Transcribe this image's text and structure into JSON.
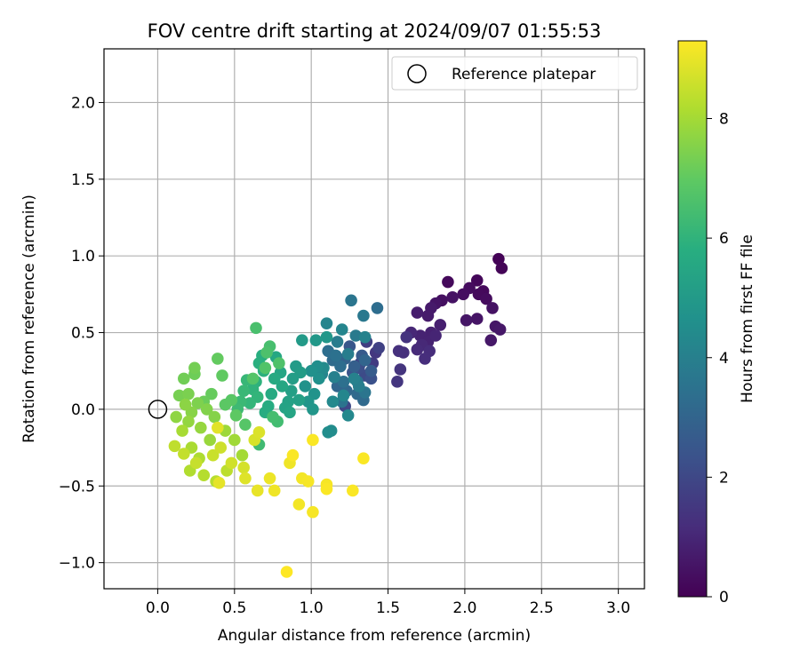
{
  "chart_data": {
    "type": "scatter",
    "title": "FOV centre drift starting at 2024/09/07 01:55:53",
    "xlabel": "Angular distance from reference (arcmin)",
    "ylabel": "Rotation from reference (arcmin)",
    "xlim": [
      -0.35,
      3.17
    ],
    "ylim": [
      -1.17,
      2.35
    ],
    "xticks": [
      0.0,
      0.5,
      1.0,
      1.5,
      2.0,
      2.5,
      3.0
    ],
    "xtick_labels": [
      "0.0",
      "0.5",
      "1.0",
      "1.5",
      "2.0",
      "2.5",
      "3.0"
    ],
    "yticks": [
      -1.0,
      -0.5,
      0.0,
      0.5,
      1.0,
      1.5,
      2.0
    ],
    "ytick_labels": [
      "−1.0",
      "−0.5",
      "0.0",
      "0.5",
      "1.0",
      "1.5",
      "2.0"
    ],
    "grid": true,
    "colormap": "viridis",
    "colorbar": {
      "label": "Hours from first FF file",
      "range": [
        0,
        9.3
      ],
      "ticks": [
        0,
        2,
        4,
        6,
        8
      ],
      "tick_labels": [
        "0",
        "2",
        "4",
        "6",
        "8"
      ]
    },
    "legend": {
      "placement": "top-right",
      "entries": [
        {
          "label": "Reference platepar",
          "marker": "open-circle"
        }
      ]
    },
    "reference_point": {
      "x": 0.0,
      "y": 0.0
    },
    "points": [
      {
        "x": 2.22,
        "y": 0.98,
        "h": 0.05
      },
      {
        "x": 2.24,
        "y": 0.92,
        "h": 0.1
      },
      {
        "x": 2.08,
        "y": 0.84,
        "h": 0.15
      },
      {
        "x": 1.89,
        "y": 0.83,
        "h": 0.2
      },
      {
        "x": 2.12,
        "y": 0.77,
        "h": 0.2
      },
      {
        "x": 2.09,
        "y": 0.75,
        "h": 0.25
      },
      {
        "x": 2.03,
        "y": 0.79,
        "h": 0.3
      },
      {
        "x": 2.14,
        "y": 0.72,
        "h": 0.3
      },
      {
        "x": 1.99,
        "y": 0.75,
        "h": 0.35
      },
      {
        "x": 1.85,
        "y": 0.71,
        "h": 0.4
      },
      {
        "x": 1.92,
        "y": 0.73,
        "h": 0.45
      },
      {
        "x": 2.18,
        "y": 0.66,
        "h": 0.45
      },
      {
        "x": 1.81,
        "y": 0.69,
        "h": 0.5
      },
      {
        "x": 2.08,
        "y": 0.59,
        "h": 0.5
      },
      {
        "x": 2.01,
        "y": 0.58,
        "h": 0.55
      },
      {
        "x": 2.2,
        "y": 0.54,
        "h": 0.55
      },
      {
        "x": 2.23,
        "y": 0.52,
        "h": 0.6
      },
      {
        "x": 2.17,
        "y": 0.45,
        "h": 0.6
      },
      {
        "x": 1.78,
        "y": 0.66,
        "h": 0.65
      },
      {
        "x": 1.76,
        "y": 0.61,
        "h": 0.7
      },
      {
        "x": 1.69,
        "y": 0.63,
        "h": 0.75
      },
      {
        "x": 1.84,
        "y": 0.55,
        "h": 0.8
      },
      {
        "x": 1.78,
        "y": 0.5,
        "h": 0.85
      },
      {
        "x": 1.71,
        "y": 0.48,
        "h": 0.9
      },
      {
        "x": 1.76,
        "y": 0.44,
        "h": 0.9
      },
      {
        "x": 1.81,
        "y": 0.48,
        "h": 0.95
      },
      {
        "x": 1.65,
        "y": 0.5,
        "h": 1.0
      },
      {
        "x": 1.72,
        "y": 0.42,
        "h": 1.05
      },
      {
        "x": 1.69,
        "y": 0.39,
        "h": 1.1
      },
      {
        "x": 1.77,
        "y": 0.38,
        "h": 1.15
      },
      {
        "x": 1.74,
        "y": 0.33,
        "h": 1.2
      },
      {
        "x": 1.6,
        "y": 0.37,
        "h": 1.25
      },
      {
        "x": 1.57,
        "y": 0.38,
        "h": 1.3
      },
      {
        "x": 1.62,
        "y": 0.47,
        "h": 1.35
      },
      {
        "x": 1.58,
        "y": 0.26,
        "h": 1.4
      },
      {
        "x": 1.56,
        "y": 0.18,
        "h": 1.45
      },
      {
        "x": 1.42,
        "y": 0.37,
        "h": 1.5
      },
      {
        "x": 1.4,
        "y": 0.3,
        "h": 1.6
      },
      {
        "x": 1.36,
        "y": 0.44,
        "h": 1.7
      },
      {
        "x": 1.44,
        "y": 0.4,
        "h": 1.8
      },
      {
        "x": 1.32,
        "y": 0.3,
        "h": 1.9
      },
      {
        "x": 1.22,
        "y": 0.02,
        "h": 2.0
      },
      {
        "x": 1.35,
        "y": 0.22,
        "h": 2.1
      },
      {
        "x": 1.31,
        "y": 0.27,
        "h": 2.2
      },
      {
        "x": 1.39,
        "y": 0.2,
        "h": 2.3
      },
      {
        "x": 1.27,
        "y": 0.24,
        "h": 2.4
      },
      {
        "x": 1.25,
        "y": 0.41,
        "h": 2.5
      },
      {
        "x": 1.33,
        "y": 0.35,
        "h": 2.6
      },
      {
        "x": 1.39,
        "y": 0.25,
        "h": 2.7
      },
      {
        "x": 1.28,
        "y": 0.28,
        "h": 2.8
      },
      {
        "x": 1.22,
        "y": 0.33,
        "h": 2.9
      },
      {
        "x": 1.35,
        "y": 0.32,
        "h": 3.0
      },
      {
        "x": 1.17,
        "y": 0.15,
        "h": 3.05
      },
      {
        "x": 1.23,
        "y": 0.12,
        "h": 3.1
      },
      {
        "x": 1.3,
        "y": 0.1,
        "h": 3.15
      },
      {
        "x": 1.34,
        "y": 0.06,
        "h": 3.2
      },
      {
        "x": 1.14,
        "y": 0.32,
        "h": 3.25
      },
      {
        "x": 1.19,
        "y": 0.28,
        "h": 3.3
      },
      {
        "x": 1.43,
        "y": 0.66,
        "h": 3.3
      },
      {
        "x": 1.11,
        "y": 0.38,
        "h": 3.35
      },
      {
        "x": 1.21,
        "y": 0.18,
        "h": 3.4
      },
      {
        "x": 1.16,
        "y": 0.35,
        "h": 3.45
      },
      {
        "x": 1.3,
        "y": 0.18,
        "h": 3.5
      },
      {
        "x": 1.2,
        "y": 0.05,
        "h": 3.55
      },
      {
        "x": 1.35,
        "y": 0.11,
        "h": 3.6
      },
      {
        "x": 1.26,
        "y": 0.71,
        "h": 3.6
      },
      {
        "x": 1.34,
        "y": 0.61,
        "h": 3.7
      },
      {
        "x": 1.29,
        "y": 0.48,
        "h": 3.8
      },
      {
        "x": 1.17,
        "y": 0.44,
        "h": 3.85
      },
      {
        "x": 1.24,
        "y": 0.36,
        "h": 3.9
      },
      {
        "x": 1.31,
        "y": 0.15,
        "h": 3.95
      },
      {
        "x": 1.15,
        "y": 0.21,
        "h": 4.0
      },
      {
        "x": 1.28,
        "y": 0.2,
        "h": 4.05
      },
      {
        "x": 1.35,
        "y": 0.47,
        "h": 4.1
      },
      {
        "x": 1.07,
        "y": 0.23,
        "h": 4.15
      },
      {
        "x": 1.2,
        "y": 0.52,
        "h": 4.2
      },
      {
        "x": 1.1,
        "y": 0.56,
        "h": 4.2
      },
      {
        "x": 1.21,
        "y": 0.09,
        "h": 4.25
      },
      {
        "x": 1.24,
        "y": -0.04,
        "h": 4.3
      },
      {
        "x": 1.14,
        "y": 0.05,
        "h": 4.35
      },
      {
        "x": 1.08,
        "y": 0.27,
        "h": 4.4
      },
      {
        "x": 1.13,
        "y": -0.14,
        "h": 4.45
      },
      {
        "x": 1.11,
        "y": -0.15,
        "h": 4.5
      },
      {
        "x": 1.04,
        "y": 0.28,
        "h": 4.55
      },
      {
        "x": 1.05,
        "y": 0.2,
        "h": 4.6
      },
      {
        "x": 1.0,
        "y": 0.25,
        "h": 4.65
      },
      {
        "x": 0.96,
        "y": 0.15,
        "h": 4.7
      },
      {
        "x": 1.02,
        "y": 0.1,
        "h": 4.75
      },
      {
        "x": 0.98,
        "y": 0.05,
        "h": 4.8
      },
      {
        "x": 1.01,
        "y": 0.0,
        "h": 4.85
      },
      {
        "x": 1.1,
        "y": 0.47,
        "h": 4.9
      },
      {
        "x": 1.03,
        "y": 0.45,
        "h": 4.95
      },
      {
        "x": 0.94,
        "y": 0.45,
        "h": 5.0
      },
      {
        "x": 0.9,
        "y": 0.28,
        "h": 5.05
      },
      {
        "x": 0.93,
        "y": 0.24,
        "h": 5.1
      },
      {
        "x": 0.88,
        "y": 0.2,
        "h": 5.15
      },
      {
        "x": 0.87,
        "y": 0.12,
        "h": 5.2
      },
      {
        "x": 0.92,
        "y": 0.06,
        "h": 5.25
      },
      {
        "x": 0.85,
        "y": 0.05,
        "h": 5.3
      },
      {
        "x": 0.83,
        "y": 0.01,
        "h": 5.35
      },
      {
        "x": 0.86,
        "y": -0.02,
        "h": 5.4
      },
      {
        "x": 0.8,
        "y": 0.24,
        "h": 5.45
      },
      {
        "x": 0.81,
        "y": 0.15,
        "h": 5.5
      },
      {
        "x": 0.77,
        "y": 0.34,
        "h": 5.55
      },
      {
        "x": 0.76,
        "y": 0.2,
        "h": 5.6
      },
      {
        "x": 0.74,
        "y": 0.1,
        "h": 5.65
      },
      {
        "x": 0.72,
        "y": 0.02,
        "h": 5.7
      },
      {
        "x": 0.7,
        "y": -0.02,
        "h": 5.75
      },
      {
        "x": 0.68,
        "y": 0.35,
        "h": 5.8
      },
      {
        "x": 0.66,
        "y": 0.3,
        "h": 5.85
      },
      {
        "x": 0.69,
        "y": 0.25,
        "h": 5.9
      },
      {
        "x": 0.64,
        "y": 0.18,
        "h": 5.95
      },
      {
        "x": 0.62,
        "y": 0.13,
        "h": 6.0
      },
      {
        "x": 0.65,
        "y": 0.08,
        "h": 6.05
      },
      {
        "x": 0.6,
        "y": 0.04,
        "h": 6.1
      },
      {
        "x": 0.58,
        "y": 0.19,
        "h": 6.15
      },
      {
        "x": 0.56,
        "y": 0.12,
        "h": 6.2
      },
      {
        "x": 0.54,
        "y": 0.05,
        "h": 6.25
      },
      {
        "x": 0.52,
        "y": 0.0,
        "h": 6.3
      },
      {
        "x": 0.66,
        "y": -0.23,
        "h": 6.35
      },
      {
        "x": 0.78,
        "y": -0.08,
        "h": 6.4
      },
      {
        "x": 0.75,
        "y": -0.05,
        "h": 6.45
      },
      {
        "x": 0.73,
        "y": 0.41,
        "h": 6.5
      },
      {
        "x": 0.64,
        "y": 0.53,
        "h": 6.55
      },
      {
        "x": 0.71,
        "y": 0.37,
        "h": 6.6
      },
      {
        "x": 0.79,
        "y": 0.3,
        "h": 6.65
      },
      {
        "x": 0.7,
        "y": 0.27,
        "h": 6.7
      },
      {
        "x": 0.62,
        "y": 0.2,
        "h": 6.75
      },
      {
        "x": 0.57,
        "y": -0.1,
        "h": 6.8
      },
      {
        "x": 0.48,
        "y": 0.06,
        "h": 6.85
      },
      {
        "x": 0.44,
        "y": 0.03,
        "h": 6.9
      },
      {
        "x": 0.51,
        "y": -0.04,
        "h": 6.95
      },
      {
        "x": 0.42,
        "y": 0.22,
        "h": 7.0
      },
      {
        "x": 0.39,
        "y": 0.33,
        "h": 7.05
      },
      {
        "x": 0.35,
        "y": 0.1,
        "h": 7.1
      },
      {
        "x": 0.3,
        "y": 0.05,
        "h": 7.15
      },
      {
        "x": 0.24,
        "y": 0.23,
        "h": 7.2
      },
      {
        "x": 0.17,
        "y": 0.2,
        "h": 7.25
      },
      {
        "x": 0.24,
        "y": 0.27,
        "h": 7.3
      },
      {
        "x": 0.14,
        "y": 0.09,
        "h": 7.35
      },
      {
        "x": 0.2,
        "y": 0.1,
        "h": 7.4
      },
      {
        "x": 0.26,
        "y": 0.04,
        "h": 7.45
      },
      {
        "x": 0.32,
        "y": 0.0,
        "h": 7.5
      },
      {
        "x": 0.37,
        "y": -0.05,
        "h": 7.55
      },
      {
        "x": 0.22,
        "y": -0.02,
        "h": 7.6
      },
      {
        "x": 0.18,
        "y": 0.03,
        "h": 7.65
      },
      {
        "x": 0.12,
        "y": -0.05,
        "h": 7.7
      },
      {
        "x": 0.2,
        "y": -0.08,
        "h": 7.75
      },
      {
        "x": 0.28,
        "y": -0.12,
        "h": 7.8
      },
      {
        "x": 0.34,
        "y": -0.2,
        "h": 7.85
      },
      {
        "x": 0.44,
        "y": -0.14,
        "h": 7.9
      },
      {
        "x": 0.5,
        "y": -0.2,
        "h": 7.95
      },
      {
        "x": 0.55,
        "y": -0.3,
        "h": 8.0
      },
      {
        "x": 0.16,
        "y": -0.14,
        "h": 8.05
      },
      {
        "x": 0.22,
        "y": -0.25,
        "h": 8.1
      },
      {
        "x": 0.27,
        "y": -0.32,
        "h": 8.15
      },
      {
        "x": 0.21,
        "y": -0.4,
        "h": 8.2
      },
      {
        "x": 0.3,
        "y": -0.43,
        "h": 8.25
      },
      {
        "x": 0.38,
        "y": -0.47,
        "h": 8.3
      },
      {
        "x": 0.45,
        "y": -0.4,
        "h": 8.35
      },
      {
        "x": 0.11,
        "y": -0.24,
        "h": 8.4
      },
      {
        "x": 0.17,
        "y": -0.29,
        "h": 8.45
      },
      {
        "x": 0.25,
        "y": -0.35,
        "h": 8.5
      },
      {
        "x": 0.36,
        "y": -0.3,
        "h": 8.55
      },
      {
        "x": 0.41,
        "y": -0.25,
        "h": 8.6
      },
      {
        "x": 0.48,
        "y": -0.35,
        "h": 8.65
      },
      {
        "x": 0.56,
        "y": -0.38,
        "h": 8.7
      },
      {
        "x": 0.63,
        "y": -0.2,
        "h": 8.75
      },
      {
        "x": 0.66,
        "y": -0.15,
        "h": 8.8
      },
      {
        "x": 0.57,
        "y": -0.45,
        "h": 8.85
      },
      {
        "x": 0.39,
        "y": -0.12,
        "h": 8.9
      },
      {
        "x": 0.4,
        "y": -0.48,
        "h": 8.95
      },
      {
        "x": 0.65,
        "y": -0.53,
        "h": 9.0
      },
      {
        "x": 0.73,
        "y": -0.45,
        "h": 9.05
      },
      {
        "x": 0.76,
        "y": -0.53,
        "h": 9.1
      },
      {
        "x": 0.86,
        "y": -0.35,
        "h": 9.1
      },
      {
        "x": 0.92,
        "y": -0.62,
        "h": 9.15
      },
      {
        "x": 0.94,
        "y": -0.45,
        "h": 9.15
      },
      {
        "x": 0.98,
        "y": -0.47,
        "h": 9.2
      },
      {
        "x": 1.01,
        "y": -0.67,
        "h": 9.2
      },
      {
        "x": 1.1,
        "y": -0.49,
        "h": 9.2
      },
      {
        "x": 1.1,
        "y": -0.52,
        "h": 9.25
      },
      {
        "x": 1.27,
        "y": -0.53,
        "h": 9.25
      },
      {
        "x": 1.34,
        "y": -0.32,
        "h": 9.25
      },
      {
        "x": 1.01,
        "y": -0.2,
        "h": 9.25
      },
      {
        "x": 0.88,
        "y": -0.3,
        "h": 9.25
      },
      {
        "x": 0.84,
        "y": -1.06,
        "h": 9.3
      }
    ]
  }
}
